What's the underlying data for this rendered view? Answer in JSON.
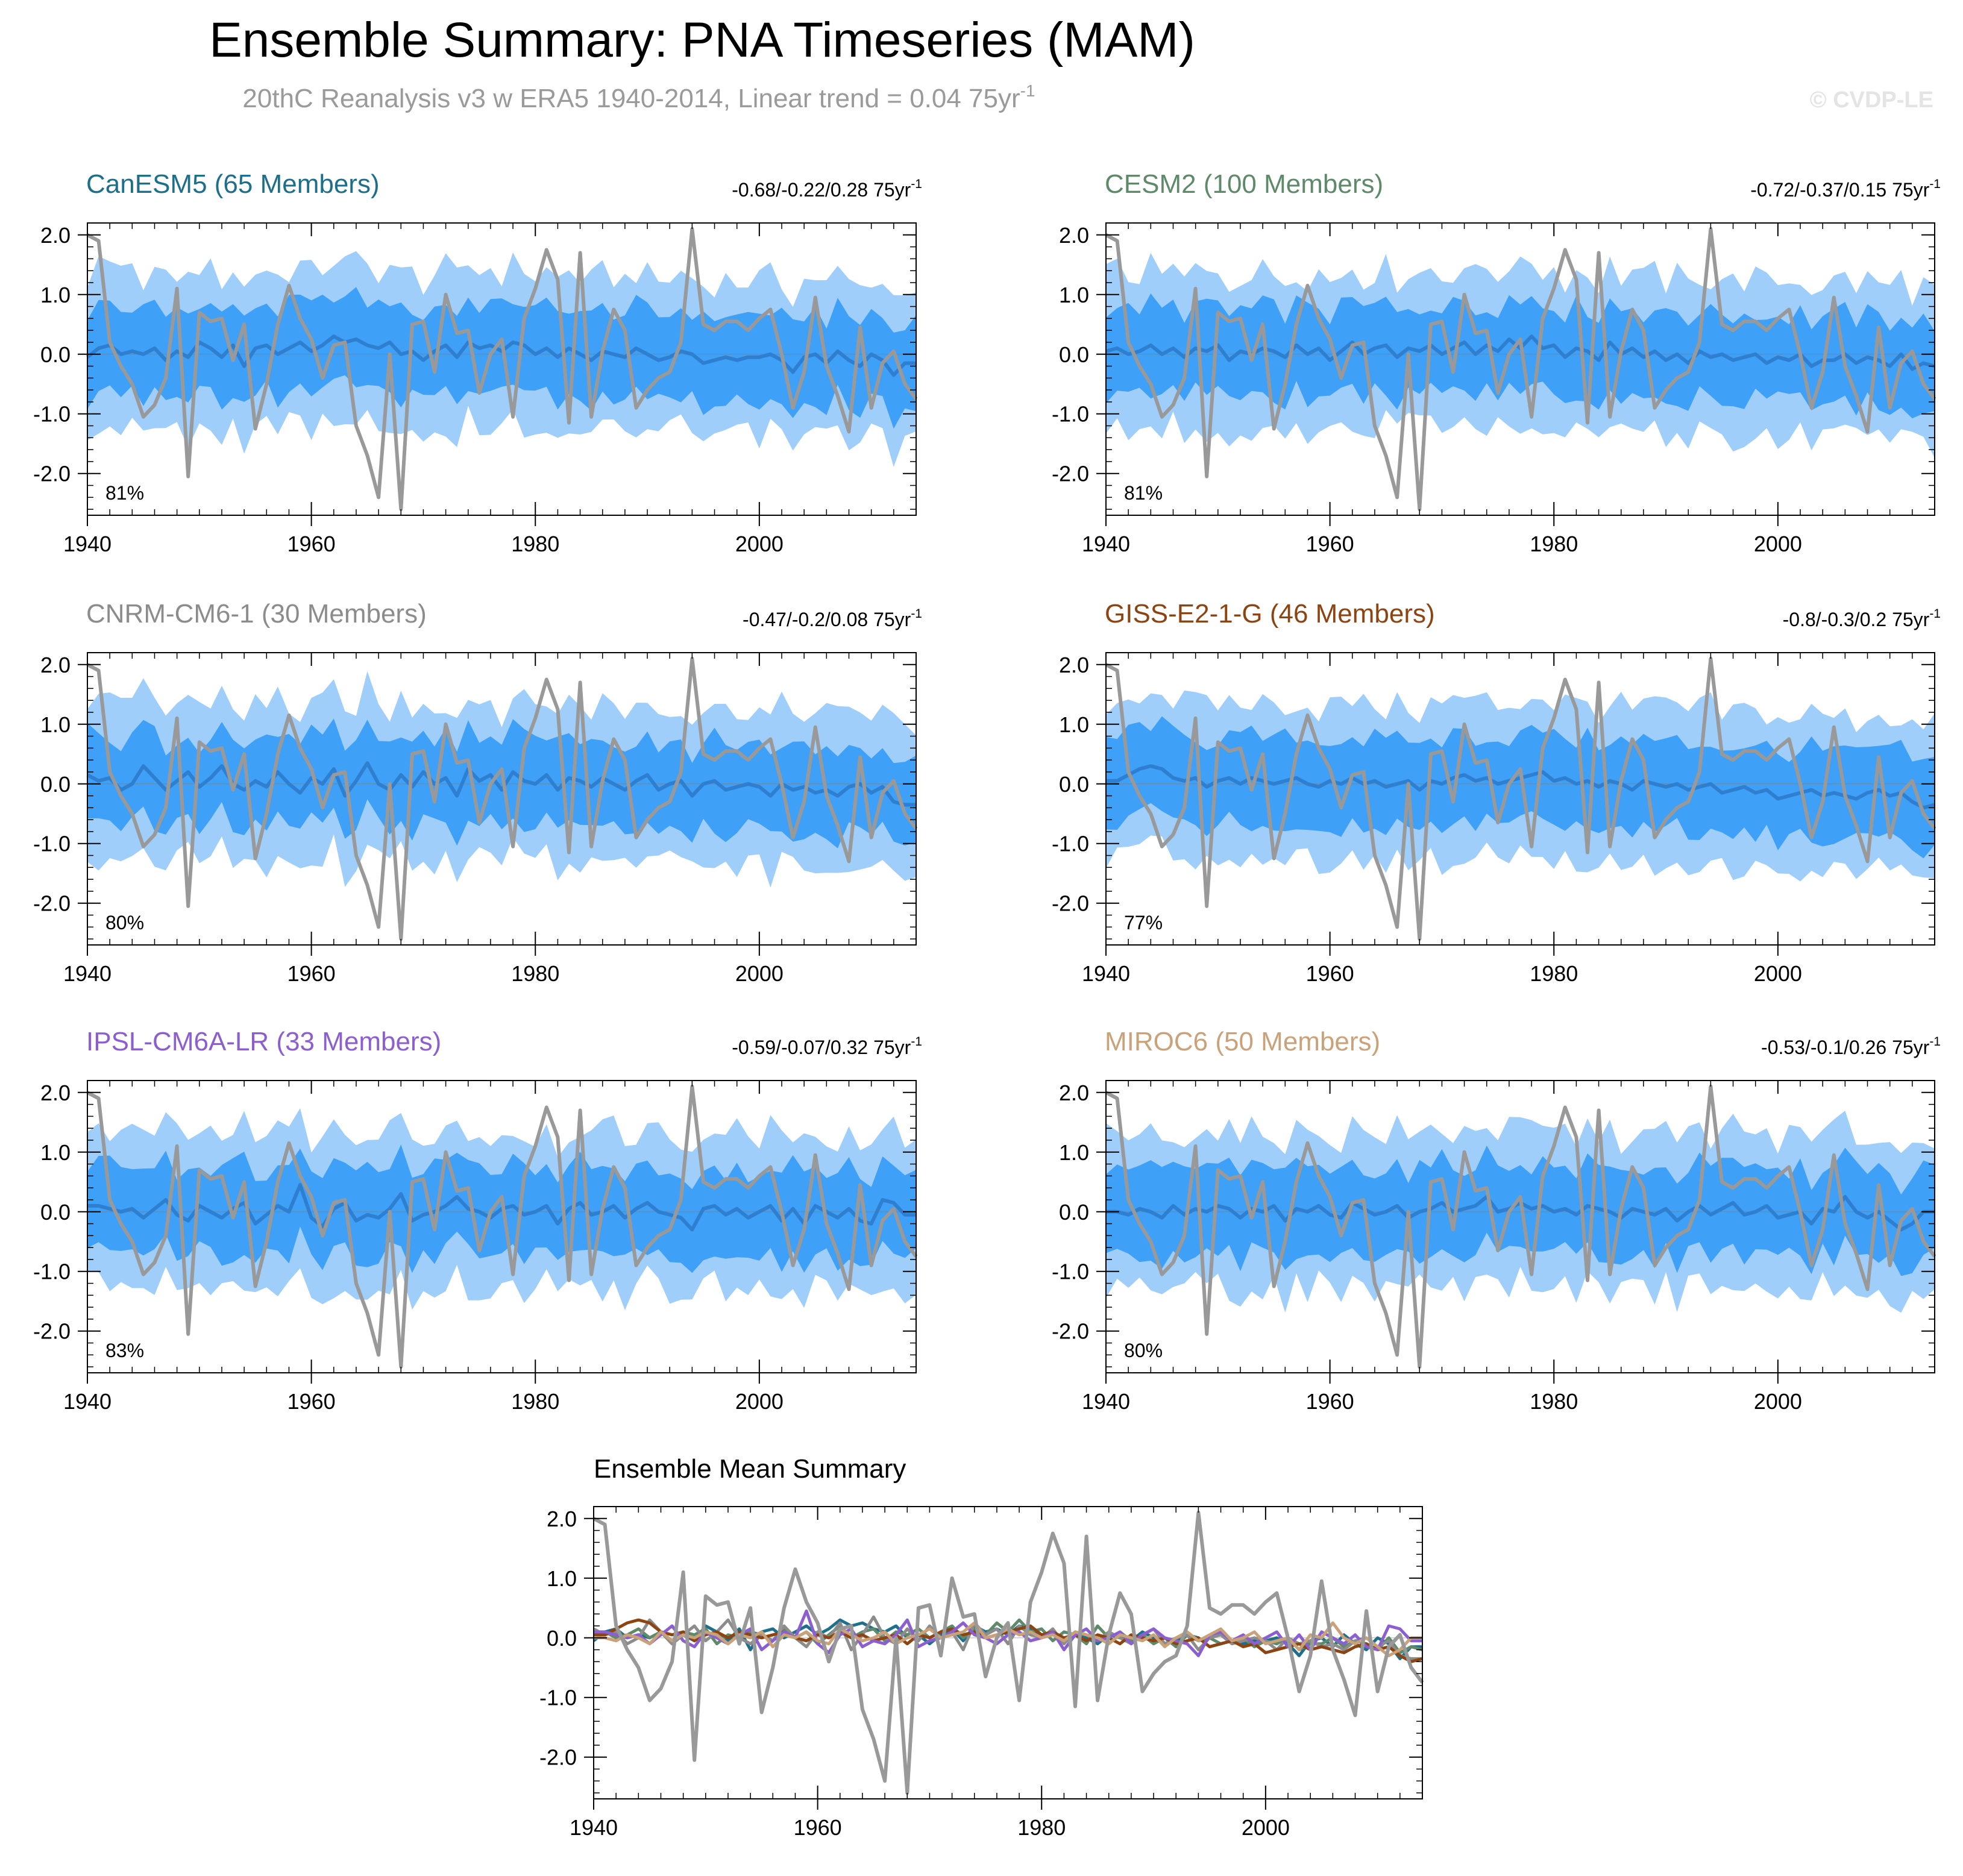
{
  "figure": {
    "title": "Ensemble Summary: PNA Timeseries (MAM)",
    "subtitle": "20thC Reanalysis v3 w ERA5 1940-2014, Linear trend = 0.04 75yr",
    "subtitle_sup": "-1",
    "watermark": "© CVDP-LE"
  },
  "colors": {
    "outer_band": "#9fcefa",
    "inner_band": "#3ea0f6",
    "ensemble_mean": "#2f7fd0",
    "observations": "#999999"
  },
  "chart_data": [
    {
      "type": "area",
      "title": "CanESM5 (65 Members)",
      "title_color": "#1d6f8c",
      "trend_label": "-0.68/-0.22/0.28 75yr",
      "trend_sup": "-1",
      "percent_label": "81%",
      "xlim": [
        1940,
        2014
      ],
      "ylim": [
        -2.7,
        2.2
      ],
      "xticks": [
        "1940",
        "1960",
        "1980",
        "2000"
      ],
      "yticks": [
        "2.0",
        "1.0",
        "0.0",
        "-1.0",
        "-2.0"
      ],
      "series": [
        {
          "values": [
            -0.05,
            0.1,
            0.15,
            0.0,
            0.05,
            0.0,
            0.1,
            -0.1,
            0.05,
            -0.05,
            0.2,
            0.1,
            -0.05,
            0.15,
            -0.2,
            0.1,
            0.15,
            0.0,
            0.1,
            0.2,
            0.05,
            0.15,
            0.3,
            0.2,
            0.25,
            0.15,
            0.1,
            0.2,
            0.0,
            0.05,
            -0.1,
            0.05,
            0.15,
            -0.05,
            0.2,
            0.1,
            0.15,
            0.05,
            0.2,
            0.15,
            0.0,
            0.1,
            -0.05,
            0.1,
            0.0,
            -0.1,
            0.05,
            0.0,
            -0.05,
            0.1,
            0.0,
            -0.1,
            -0.05,
            0.05,
            0.0,
            -0.15,
            -0.1,
            -0.05,
            -0.1,
            -0.05,
            -0.05,
            0.0,
            -0.1,
            -0.3,
            -0.05,
            0.0,
            -0.15,
            0.05,
            -0.1,
            -0.2,
            0.0,
            -0.1,
            -0.35,
            -0.15,
            -0.15
          ]
        }
      ]
    },
    {
      "type": "area",
      "title": "CESM2 (100 Members)",
      "title_color": "#5f8a6a",
      "trend_label": "-0.72/-0.37/0.15 75yr",
      "trend_sup": "-1",
      "percent_label": "81%",
      "xlim": [
        1940,
        2014
      ],
      "ylim": [
        -2.7,
        2.2
      ],
      "xticks": [
        "1940",
        "1960",
        "1980",
        "2000"
      ],
      "yticks": [
        "2.0",
        "1.0",
        "0.0",
        "-1.0",
        "-2.0"
      ],
      "series": [
        {
          "values": [
            0.05,
            0.1,
            0.0,
            0.05,
            0.15,
            0.0,
            0.1,
            -0.05,
            0.1,
            0.05,
            0.15,
            -0.1,
            0.05,
            0.0,
            0.1,
            0.05,
            -0.05,
            0.15,
            0.0,
            0.1,
            -0.1,
            0.05,
            0.2,
            0.0,
            0.1,
            0.15,
            -0.05,
            0.1,
            0.05,
            0.15,
            0.0,
            0.1,
            0.2,
            0.0,
            0.15,
            0.05,
            0.25,
            0.1,
            0.3,
            0.1,
            0.15,
            -0.05,
            0.1,
            0.05,
            -0.1,
            0.2,
            0.0,
            0.1,
            -0.05,
            0.05,
            -0.1,
            0.0,
            -0.15,
            0.05,
            -0.05,
            0.0,
            -0.1,
            -0.05,
            0.0,
            -0.15,
            -0.05,
            -0.1,
            0.0,
            -0.2,
            -0.1,
            -0.1,
            0.0,
            -0.15,
            -0.05,
            -0.1,
            -0.2,
            0.0,
            -0.25,
            -0.15,
            -0.2
          ]
        }
      ]
    },
    {
      "type": "area",
      "title": "CNRM-CM6-1 (30 Members)",
      "title_color": "#8c8c8c",
      "trend_label": "-0.47/-0.2/0.08 75yr",
      "trend_sup": "-1",
      "percent_label": "80%",
      "xlim": [
        1940,
        2014
      ],
      "ylim": [
        -2.7,
        2.2
      ],
      "xticks": [
        "1940",
        "1960",
        "1980",
        "2000"
      ],
      "yticks": [
        "2.0",
        "1.0",
        "0.0",
        "-1.0",
        "-2.0"
      ],
      "series": [
        {
          "values": [
            0.15,
            0.05,
            0.1,
            -0.1,
            0.0,
            0.3,
            0.1,
            -0.1,
            0.05,
            0.2,
            -0.05,
            0.1,
            0.3,
            0.0,
            -0.1,
            0.05,
            -0.05,
            0.2,
            0.0,
            -0.15,
            0.1,
            0.0,
            0.25,
            -0.2,
            0.05,
            0.35,
            0.0,
            -0.1,
            0.15,
            -0.05,
            0.2,
            0.0,
            0.1,
            -0.2,
            0.25,
            0.05,
            0.15,
            -0.1,
            0.2,
            0.05,
            0.0,
            0.15,
            -0.1,
            0.1,
            0.05,
            -0.05,
            0.1,
            0.0,
            -0.1,
            0.05,
            0.15,
            -0.1,
            0.0,
            0.05,
            -0.2,
            0.0,
            0.05,
            -0.1,
            -0.05,
            0.0,
            -0.05,
            -0.2,
            0.0,
            -0.1,
            -0.05,
            -0.15,
            -0.1,
            -0.2,
            -0.05,
            0.0,
            -0.15,
            -0.05,
            -0.3,
            -0.35,
            -0.35
          ]
        }
      ]
    },
    {
      "type": "area",
      "title": "GISS-E2-1-G (46 Members)",
      "title_color": "#8c4512",
      "trend_label": "-0.8/-0.3/0.2 75yr",
      "trend_sup": "-1",
      "percent_label": "77%",
      "xlim": [
        1940,
        2014
      ],
      "ylim": [
        -2.7,
        2.2
      ],
      "xticks": [
        "1940",
        "1960",
        "1980",
        "2000"
      ],
      "yticks": [
        "2.0",
        "1.0",
        "0.0",
        "-1.0",
        "-2.0"
      ],
      "series": [
        {
          "values": [
            0.05,
            0.05,
            0.15,
            0.25,
            0.3,
            0.25,
            0.1,
            0.05,
            0.1,
            -0.05,
            0.05,
            0.1,
            0.0,
            0.1,
            0.05,
            0.0,
            0.05,
            0.1,
            0.0,
            -0.05,
            0.05,
            0.0,
            0.1,
            0.0,
            0.05,
            -0.05,
            0.0,
            0.05,
            -0.1,
            0.05,
            0.0,
            0.1,
            0.15,
            0.05,
            0.1,
            0.0,
            0.05,
            0.1,
            0.15,
            0.2,
            0.05,
            0.1,
            0.0,
            0.05,
            -0.05,
            0.05,
            0.0,
            -0.1,
            0.05,
            0.0,
            -0.05,
            0.0,
            -0.1,
            -0.05,
            0.0,
            -0.15,
            -0.1,
            -0.05,
            -0.15,
            -0.1,
            -0.25,
            -0.2,
            -0.15,
            -0.1,
            -0.2,
            -0.15,
            -0.2,
            -0.25,
            -0.15,
            -0.1,
            -0.2,
            -0.15,
            -0.3,
            -0.4,
            -0.35
          ]
        }
      ]
    },
    {
      "type": "area",
      "title": "IPSL-CM6A-LR (33 Members)",
      "title_color": "#8b5fcf",
      "trend_label": "-0.59/-0.07/0.32 75yr",
      "trend_sup": "-1",
      "percent_label": "83%",
      "xlim": [
        1940,
        2014
      ],
      "ylim": [
        -2.7,
        2.2
      ],
      "xticks": [
        "1940",
        "1960",
        "1980",
        "2000"
      ],
      "yticks": [
        "2.0",
        "1.0",
        "0.0",
        "-1.0",
        "-2.0"
      ],
      "series": [
        {
          "values": [
            0.1,
            0.1,
            0.05,
            0.0,
            0.05,
            -0.1,
            0.05,
            0.2,
            -0.05,
            -0.15,
            0.1,
            0.0,
            -0.1,
            0.05,
            0.15,
            -0.2,
            -0.05,
            0.1,
            0.0,
            0.45,
            -0.1,
            -0.25,
            0.05,
            0.15,
            -0.15,
            -0.05,
            -0.1,
            0.05,
            0.3,
            -0.15,
            -0.05,
            0.0,
            0.1,
            0.25,
            0.05,
            0.0,
            -0.1,
            0.05,
            0.1,
            -0.05,
            0.0,
            0.1,
            -0.2,
            0.05,
            0.15,
            -0.05,
            0.0,
            0.1,
            -0.1,
            0.05,
            0.15,
            0.0,
            -0.05,
            -0.1,
            -0.3,
            0.05,
            0.1,
            -0.05,
            0.05,
            -0.1,
            0.0,
            0.1,
            -0.15,
            0.05,
            -0.2,
            0.1,
            0.0,
            -0.1,
            0.05,
            -0.15,
            -0.2,
            0.2,
            0.15,
            -0.05,
            -0.05
          ]
        }
      ]
    },
    {
      "type": "area",
      "title": "MIROC6 (50 Members)",
      "title_color": "#c9a27a",
      "trend_label": "-0.53/-0.1/0.26 75yr",
      "trend_sup": "-1",
      "percent_label": "80%",
      "xlim": [
        1940,
        2014
      ],
      "ylim": [
        -2.7,
        2.2
      ],
      "xticks": [
        "1940",
        "1960",
        "1980",
        "2000"
      ],
      "yticks": [
        "2.0",
        "1.0",
        "0.0",
        "-1.0",
        "-2.0"
      ],
      "series": [
        {
          "values": [
            0.0,
            0.0,
            -0.05,
            0.05,
            0.0,
            -0.1,
            0.1,
            -0.05,
            0.05,
            0.0,
            0.1,
            0.05,
            -0.1,
            0.05,
            0.0,
            0.1,
            -0.15,
            0.05,
            0.0,
            0.1,
            -0.05,
            -0.1,
            0.15,
            0.05,
            -0.05,
            0.0,
            0.1,
            -0.1,
            0.0,
            0.05,
            0.15,
            0.0,
            0.05,
            0.1,
            0.25,
            0.0,
            0.05,
            0.15,
            0.05,
            0.1,
            0.0,
            0.05,
            -0.05,
            0.1,
            0.05,
            0.0,
            -0.1,
            0.05,
            0.0,
            -0.05,
            0.05,
            -0.15,
            0.0,
            0.1,
            -0.05,
            0.05,
            0.15,
            -0.05,
            0.0,
            0.1,
            -0.1,
            -0.05,
            0.0,
            -0.2,
            0.05,
            0.0,
            0.25,
            0.0,
            -0.1,
            0.0,
            -0.15,
            -0.3,
            -0.2,
            0.0,
            0.0
          ]
        }
      ]
    },
    {
      "type": "line",
      "title": "Ensemble Mean Summary",
      "xlim": [
        1940,
        2014
      ],
      "ylim": [
        -2.7,
        2.2
      ],
      "xticks": [
        "1940",
        "1960",
        "1980",
        "2000"
      ],
      "yticks": [
        "2.0",
        "1.0",
        "0.0",
        "-1.0",
        "-2.0"
      ],
      "x_start": 1940
    }
  ],
  "observations": {
    "x_start": 1940,
    "values": [
      2.0,
      1.9,
      0.2,
      -0.2,
      -0.5,
      -1.05,
      -0.85,
      -0.4,
      1.1,
      -2.05,
      0.7,
      0.55,
      0.6,
      -0.1,
      0.5,
      -1.25,
      -0.5,
      0.5,
      1.15,
      0.6,
      0.25,
      -0.4,
      0.15,
      0.2,
      -1.2,
      -1.7,
      -2.4,
      0.0,
      -2.6,
      0.5,
      0.55,
      -0.3,
      1.0,
      0.35,
      0.4,
      -0.65,
      0.0,
      0.25,
      -1.05,
      0.6,
      1.1,
      1.75,
      1.25,
      -1.15,
      1.7,
      -1.05,
      0.05,
      0.75,
      0.4,
      -0.9,
      -0.6,
      -0.4,
      -0.3,
      0.2,
      2.1,
      0.5,
      0.4,
      0.55,
      0.55,
      0.4,
      0.6,
      0.75,
      0.0,
      -0.9,
      -0.3,
      0.95,
      -0.2,
      -0.7,
      -1.3,
      0.45,
      -0.9,
      -0.15,
      0.05,
      -0.5,
      -0.75
    ]
  }
}
